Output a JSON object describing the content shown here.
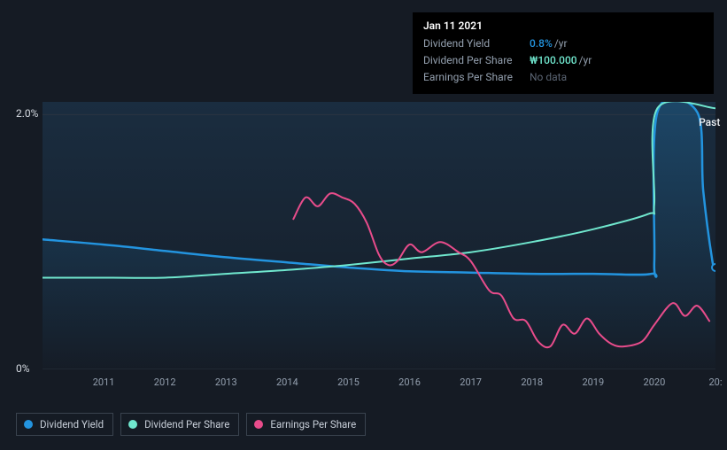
{
  "tooltip": {
    "date": "Jan 11 2021",
    "rows": [
      {
        "label": "Dividend Yield",
        "value": "0.8%",
        "unit": "/yr",
        "color": "#2394df"
      },
      {
        "label": "Dividend Per Share",
        "value": "₩100.000",
        "unit": "/yr",
        "color": "#70e7ce"
      },
      {
        "label": "Earnings Per Share",
        "value": "No data",
        "nodata": true
      }
    ]
  },
  "chart": {
    "type": "line",
    "background": "#151b24",
    "plot_bg_gradient_top": "#1a2d40",
    "plot_bg_gradient_bottom": "#151c26",
    "x_start": 2010,
    "x_end": 2021,
    "x_ticks": [
      2011,
      2012,
      2013,
      2014,
      2015,
      2016,
      2017,
      2018,
      2019,
      2020
    ],
    "x_extra_label": "20:",
    "y_ticks": [
      {
        "v": 0,
        "label": "0%"
      },
      {
        "v": 2.0,
        "label": "2.0%"
      }
    ],
    "ylim": [
      0,
      2.1
    ],
    "past_label": "Past",
    "past_x": 2020.9,
    "grid_color": "#2a3340",
    "axis_text_color": "#94a0af",
    "series": [
      {
        "name": "Dividend Yield",
        "color": "#2394df",
        "width": 2.5,
        "fill": true,
        "fill_opacity": 0.25,
        "points": [
          [
            2010,
            1.02
          ],
          [
            2011,
            0.98
          ],
          [
            2012,
            0.93
          ],
          [
            2013,
            0.88
          ],
          [
            2014,
            0.84
          ],
          [
            2015,
            0.8
          ],
          [
            2016,
            0.77
          ],
          [
            2017,
            0.76
          ],
          [
            2018,
            0.75
          ],
          [
            2019,
            0.75
          ],
          [
            2019.95,
            0.75
          ],
          [
            2020.0,
            0.85
          ],
          [
            2020.05,
            2.02
          ],
          [
            2020.7,
            2.02
          ],
          [
            2020.8,
            1.4
          ],
          [
            2020.95,
            0.85
          ],
          [
            2021,
            0.8
          ]
        ]
      },
      {
        "name": "Dividend Per Share",
        "color": "#70e7ce",
        "width": 2,
        "fill": false,
        "points": [
          [
            2010,
            0.72
          ],
          [
            2011,
            0.72
          ],
          [
            2012,
            0.72
          ],
          [
            2013,
            0.75
          ],
          [
            2014,
            0.78
          ],
          [
            2015,
            0.82
          ],
          [
            2016,
            0.87
          ],
          [
            2017,
            0.92
          ],
          [
            2018,
            1.0
          ],
          [
            2019,
            1.1
          ],
          [
            2019.9,
            1.22
          ],
          [
            2020.0,
            1.3
          ],
          [
            2020.05,
            2.05
          ],
          [
            2021,
            2.05
          ]
        ]
      },
      {
        "name": "Earnings Per Share",
        "color": "#e84c8b",
        "width": 2,
        "fill": false,
        "points": [
          [
            2014.1,
            1.18
          ],
          [
            2014.3,
            1.35
          ],
          [
            2014.5,
            1.28
          ],
          [
            2014.7,
            1.38
          ],
          [
            2014.9,
            1.35
          ],
          [
            2015.1,
            1.3
          ],
          [
            2015.3,
            1.15
          ],
          [
            2015.5,
            0.9
          ],
          [
            2015.65,
            0.82
          ],
          [
            2015.8,
            0.85
          ],
          [
            2016.0,
            0.98
          ],
          [
            2016.2,
            0.92
          ],
          [
            2016.5,
            1.0
          ],
          [
            2016.8,
            0.92
          ],
          [
            2017.0,
            0.85
          ],
          [
            2017.3,
            0.62
          ],
          [
            2017.5,
            0.58
          ],
          [
            2017.7,
            0.4
          ],
          [
            2017.9,
            0.38
          ],
          [
            2018.1,
            0.22
          ],
          [
            2018.3,
            0.18
          ],
          [
            2018.5,
            0.35
          ],
          [
            2018.7,
            0.28
          ],
          [
            2018.9,
            0.4
          ],
          [
            2019.1,
            0.28
          ],
          [
            2019.3,
            0.2
          ],
          [
            2019.5,
            0.18
          ],
          [
            2019.8,
            0.22
          ],
          [
            2020.0,
            0.35
          ],
          [
            2020.3,
            0.52
          ],
          [
            2020.5,
            0.42
          ],
          [
            2020.7,
            0.5
          ],
          [
            2020.9,
            0.38
          ]
        ]
      }
    ]
  },
  "legend": [
    {
      "label": "Dividend Yield",
      "color": "#2394df"
    },
    {
      "label": "Dividend Per Share",
      "color": "#70e7ce"
    },
    {
      "label": "Earnings Per Share",
      "color": "#e84c8b"
    }
  ]
}
